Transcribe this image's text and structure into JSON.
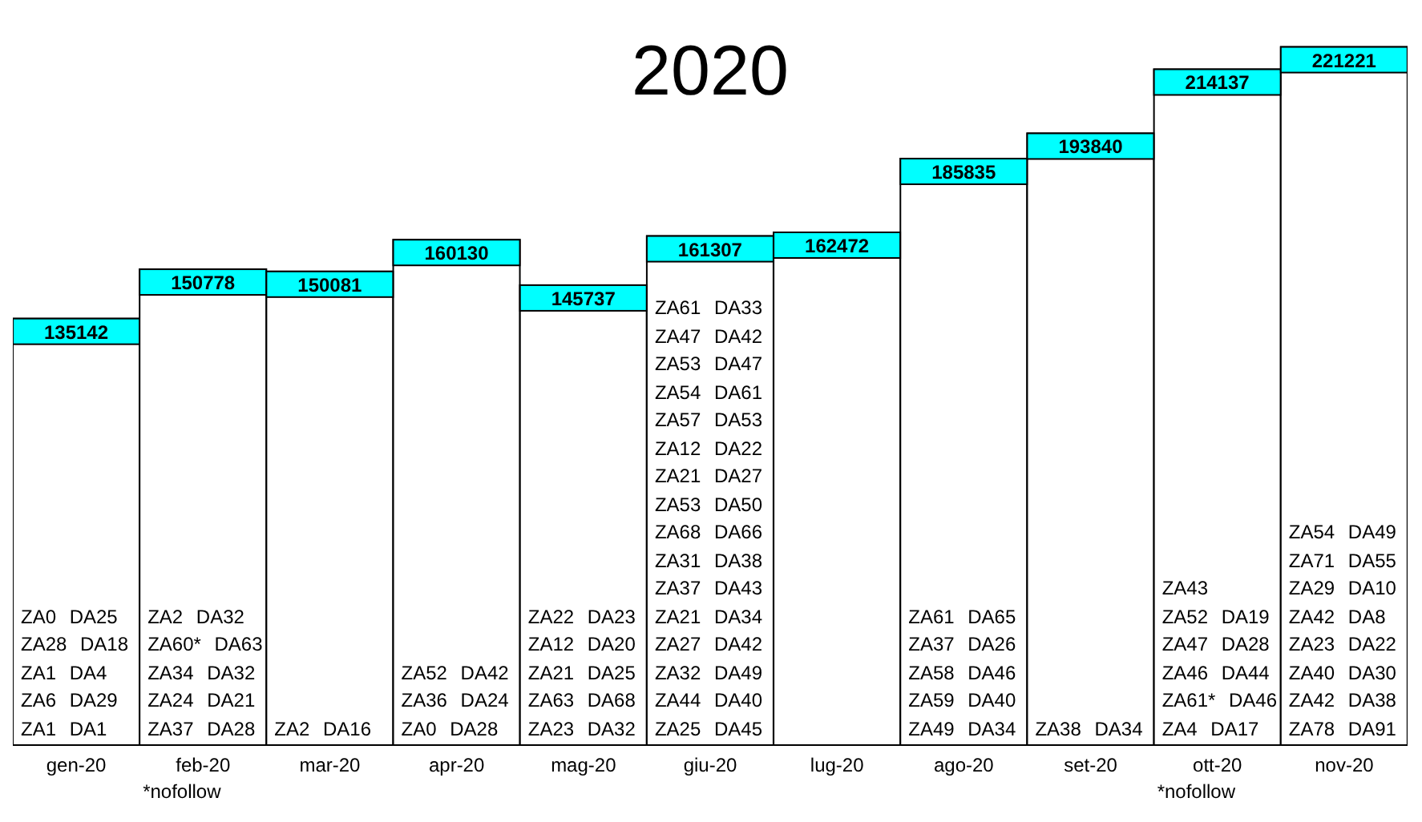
{
  "chart_data": [
    {
      "type": "bar",
      "title": "2020",
      "categories": [
        "gen-20",
        "feb-20",
        "mar-20",
        "apr-20",
        "mag-20",
        "giu-20",
        "lug-20",
        "ago-20",
        "set-20",
        "ott-20",
        "nov-20"
      ],
      "values": [
        135142,
        150778,
        150081,
        160130,
        145737,
        161307,
        162472,
        185835,
        193840,
        214137,
        221221
      ],
      "color": "#ffffff",
      "ylim": [
        0,
        230000
      ],
      "data_labels": true
    },
    {
      "type": "other",
      "annotations": [
        "ZA0 DA25",
        "ZA28 DA18",
        "ZA1 DA4",
        "ZA6 DA29",
        "ZA1 DA1"
      ]
    },
    {
      "type": "other",
      "subtitle": "*nofollow",
      "annotations": [
        "ZA2 DA32",
        "ZA60* DA63",
        "ZA34 DA32",
        "ZA24 DA21",
        "ZA37 DA28"
      ]
    },
    {
      "type": "other",
      "annotations": [
        "ZA2 DA16"
      ]
    },
    {
      "type": "other",
      "annotations": [
        "ZA52 DA42",
        "ZA36 DA24",
        "ZA0 DA28"
      ]
    },
    {
      "type": "other",
      "annotations": [
        "ZA22 DA23",
        "ZA12 DA20",
        "ZA21 DA25",
        "ZA63 DA68",
        "ZA23 DA32"
      ]
    },
    {
      "type": "other",
      "annotations": [
        "ZA61 DA33",
        "ZA47 DA42",
        "ZA53 DA47",
        "ZA54 DA61",
        "ZA57 DA53",
        "ZA12 DA22",
        "ZA21 DA27",
        "ZA53 DA50",
        "ZA68 DA66",
        "ZA31 DA38",
        "ZA37 DA43",
        "ZA21 DA34",
        "ZA27 DA42",
        "ZA32 DA49",
        "ZA44 DA40",
        "ZA25 DA45"
      ]
    },
    {
      "type": "other"
    },
    {
      "type": "other",
      "annotations": [
        "ZA61 DA65",
        "ZA37 DA26",
        "ZA58 DA46",
        "ZA59 DA40",
        "ZA49 DA34"
      ]
    },
    {
      "type": "other",
      "annotations": [
        "ZA38 DA34"
      ]
    },
    {
      "type": "other",
      "subtitle": "*nofollow",
      "annotations": [
        "ZA43",
        "ZA52 DA19",
        "ZA47 DA28",
        "ZA46 DA44",
        "ZA61* DA46",
        "ZA4 DA17"
      ]
    },
    {
      "type": "other",
      "annotations": [
        "ZA54 DA49",
        "ZA71 DA55",
        "ZA29 DA10",
        "ZA42 DA8",
        "ZA23 DA22",
        "ZA40 DA30",
        "ZA42 DA38",
        "ZA78 DA91"
      ]
    }
  ]
}
